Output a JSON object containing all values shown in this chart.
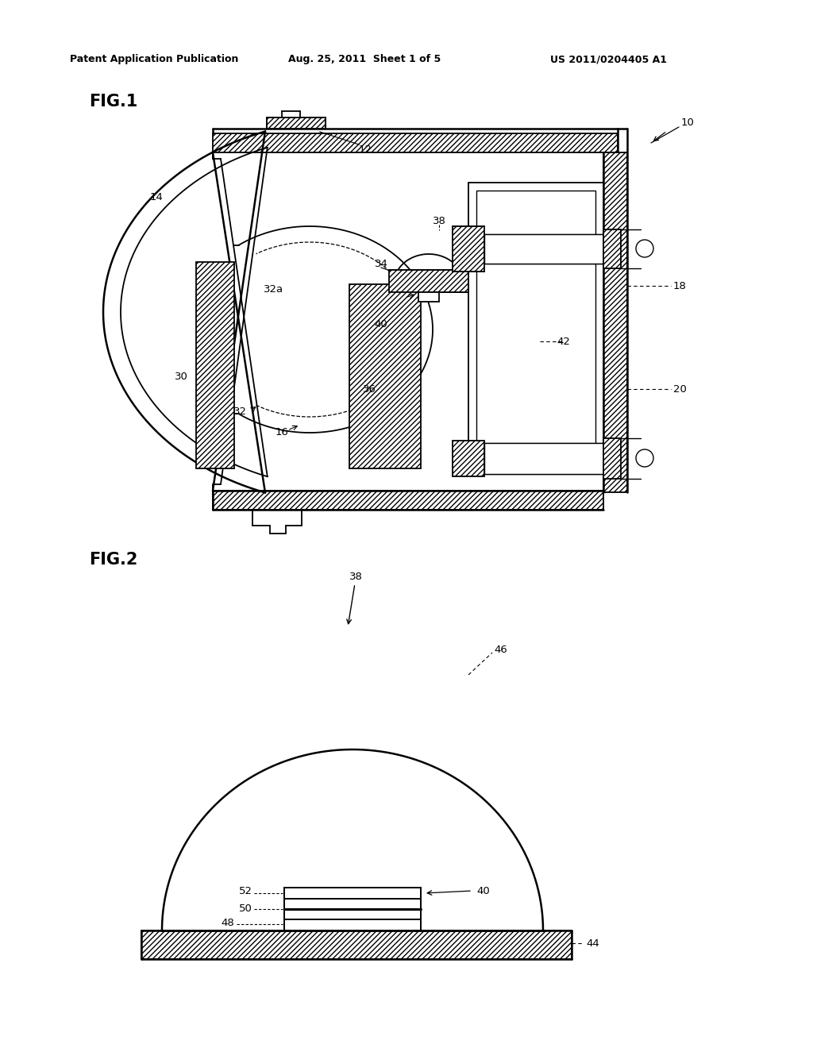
{
  "header_left": "Patent Application Publication",
  "header_mid": "Aug. 25, 2011  Sheet 1 of 5",
  "header_right": "US 2011/0204405 A1",
  "bg_color": "#ffffff",
  "fig1_title": "FIG.1",
  "fig2_title": "FIG.2"
}
